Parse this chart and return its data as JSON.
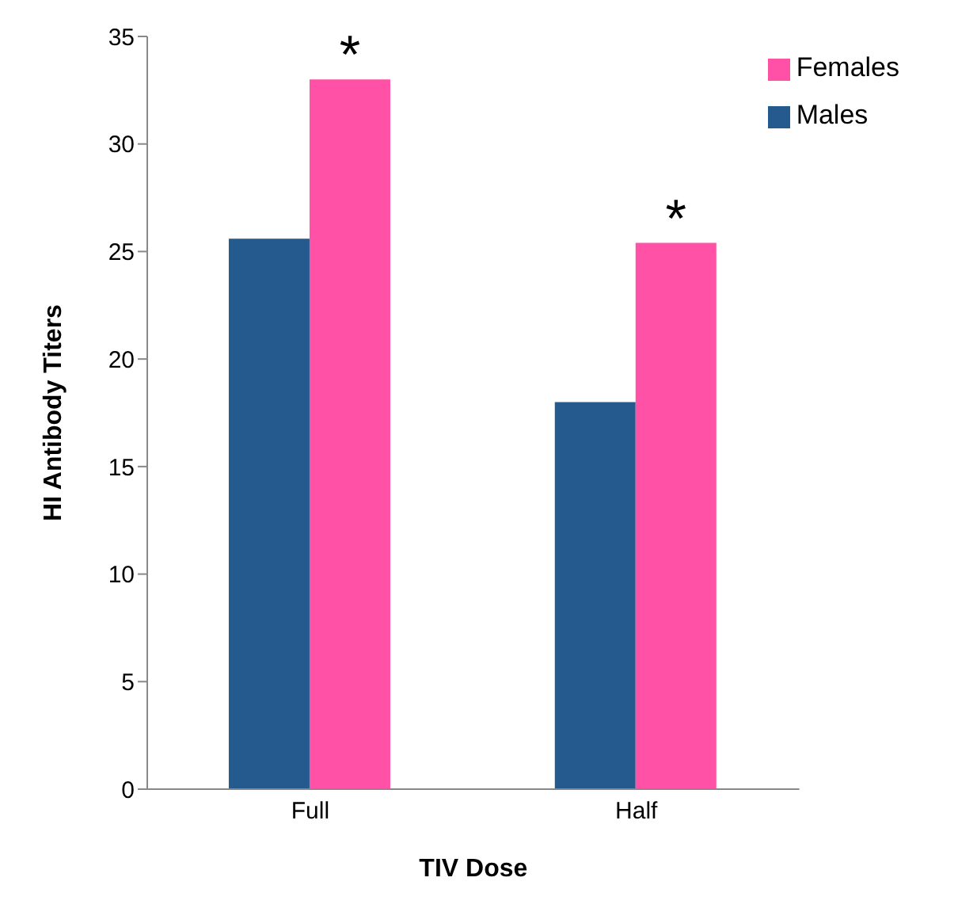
{
  "chart_data": {
    "type": "bar",
    "xlabel": "TIV Dose",
    "ylabel": "HI Antibody Titers",
    "categories": [
      "Full",
      "Half"
    ],
    "series": [
      {
        "name": "Males",
        "color": "#255a8e",
        "values": [
          25.6,
          18.0
        ]
      },
      {
        "name": "Females",
        "color": "#ff52a6",
        "values": [
          33.0,
          25.4
        ]
      }
    ],
    "ylim": [
      0,
      35
    ],
    "yticks": [
      0,
      5,
      10,
      15,
      20,
      25,
      30,
      35
    ],
    "grid": false,
    "legend": "top right",
    "annotations": [
      {
        "text": "*",
        "x": "Full",
        "y": 33.0
      },
      {
        "text": "*",
        "x": "Half",
        "y": 25.4
      }
    ]
  }
}
